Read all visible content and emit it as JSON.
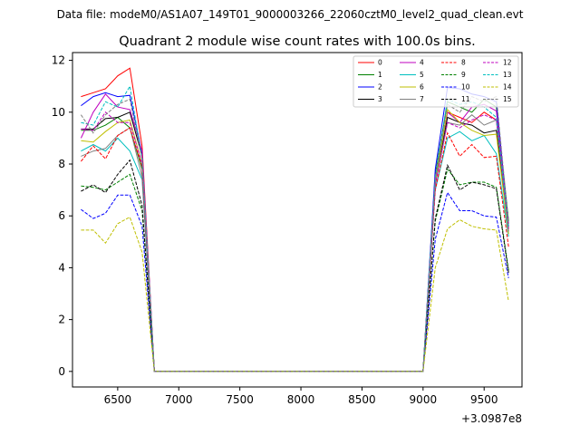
{
  "chart_data": {
    "type": "line",
    "suptitle": "Data file: modeM0/AS1A07_149T01_9000003266_22060cztM0_level2_quad_clean.evt",
    "title": "Quadrant 2 module wise count rates with 100.0s bins.",
    "xlabel": "",
    "ylabel": "",
    "x_offset_label": "+3.0987e8",
    "xlim": [
      6130,
      9810
    ],
    "ylim": [
      -0.6,
      12.3
    ],
    "xticks": [
      6500,
      7000,
      7500,
      8000,
      8500,
      9000,
      9500
    ],
    "yticks": [
      0,
      2,
      4,
      6,
      8,
      10,
      12
    ],
    "grid": false,
    "legend_position": "top-right",
    "legend_columns": 4,
    "x": [
      6200,
      6300,
      6400,
      6500,
      6600,
      6700,
      6800,
      6900,
      7000,
      7100,
      7200,
      7300,
      7400,
      7500,
      7600,
      7700,
      7800,
      7900,
      8000,
      8100,
      8200,
      8300,
      8400,
      8500,
      8600,
      8700,
      8800,
      8900,
      9000,
      9100,
      9200,
      9300,
      9400,
      9500,
      9600,
      9700
    ],
    "series": [
      {
        "name": "0",
        "color": "#ff0000",
        "dash": "solid",
        "values": [
          10.6,
          10.75,
          10.9,
          11.4,
          11.7,
          8.7,
          0,
          0,
          0,
          0,
          0,
          0,
          0,
          0,
          0,
          0,
          0,
          0,
          0,
          0,
          0,
          0,
          0,
          0,
          0,
          0,
          0,
          0,
          0,
          7.5,
          10.0,
          9.8,
          9.6,
          10.0,
          9.7,
          5.7
        ]
      },
      {
        "name": "1",
        "color": "#008000",
        "dash": "solid",
        "values": [
          9.3,
          9.3,
          9.5,
          9.8,
          9.4,
          7.8,
          0,
          0,
          0,
          0,
          0,
          0,
          0,
          0,
          0,
          0,
          0,
          0,
          0,
          0,
          0,
          0,
          0,
          0,
          0,
          0,
          0,
          0,
          0,
          7.6,
          10.4,
          10.2,
          10.0,
          10.5,
          10.2,
          5.8
        ]
      },
      {
        "name": "2",
        "color": "#0000ff",
        "dash": "solid",
        "values": [
          10.25,
          10.6,
          10.75,
          10.6,
          10.65,
          8.4,
          0,
          0,
          0,
          0,
          0,
          0,
          0,
          0,
          0,
          0,
          0,
          0,
          0,
          0,
          0,
          0,
          0,
          0,
          0,
          0,
          0,
          0,
          0,
          7.8,
          10.95,
          10.9,
          10.7,
          10.6,
          10.4,
          5.6
        ]
      },
      {
        "name": "3",
        "color": "#000000",
        "dash": "solid",
        "values": [
          9.35,
          9.35,
          9.75,
          9.8,
          10.0,
          8.3,
          0,
          0,
          0,
          0,
          0,
          0,
          0,
          0,
          0,
          0,
          0,
          0,
          0,
          0,
          0,
          0,
          0,
          0,
          0,
          0,
          0,
          0,
          0,
          7.2,
          9.8,
          9.6,
          9.5,
          9.2,
          9.3,
          5.5
        ]
      },
      {
        "name": "4",
        "color": "#bf00bf",
        "dash": "solid",
        "values": [
          9.0,
          10.0,
          10.7,
          10.2,
          10.1,
          8.5,
          0,
          0,
          0,
          0,
          0,
          0,
          0,
          0,
          0,
          0,
          0,
          0,
          0,
          0,
          0,
          0,
          0,
          0,
          0,
          0,
          0,
          0,
          0,
          7.5,
          10.0,
          9.6,
          10.2,
          10.3,
          10.05,
          5.6
        ]
      },
      {
        "name": "5",
        "color": "#00bfbf",
        "dash": "solid",
        "values": [
          8.5,
          8.75,
          8.5,
          9.0,
          8.5,
          7.4,
          0,
          0,
          0,
          0,
          0,
          0,
          0,
          0,
          0,
          0,
          0,
          0,
          0,
          0,
          0,
          0,
          0,
          0,
          0,
          0,
          0,
          0,
          0,
          7.0,
          9.0,
          9.25,
          8.9,
          9.1,
          8.4,
          5.2
        ]
      },
      {
        "name": "6",
        "color": "#bfbf00",
        "dash": "solid",
        "values": [
          8.9,
          8.85,
          9.25,
          9.6,
          9.7,
          8.0,
          0,
          0,
          0,
          0,
          0,
          0,
          0,
          0,
          0,
          0,
          0,
          0,
          0,
          0,
          0,
          0,
          0,
          0,
          0,
          0,
          0,
          0,
          0,
          7.3,
          10.1,
          9.6,
          9.3,
          9.1,
          9.15,
          5.3
        ]
      },
      {
        "name": "7",
        "color": "#808080",
        "dash": "solid",
        "values": [
          8.3,
          8.5,
          8.6,
          9.1,
          9.4,
          7.5,
          0,
          0,
          0,
          0,
          0,
          0,
          0,
          0,
          0,
          0,
          0,
          0,
          0,
          0,
          0,
          0,
          0,
          0,
          0,
          0,
          0,
          0,
          0,
          7.2,
          9.6,
          9.5,
          9.9,
          9.5,
          9.7,
          5.4
        ]
      },
      {
        "name": "8",
        "color": "#ff0000",
        "dash": "dashed",
        "values": [
          8.1,
          8.7,
          8.2,
          9.1,
          9.4,
          7.9,
          0,
          0,
          0,
          0,
          0,
          0,
          0,
          0,
          0,
          0,
          0,
          0,
          0,
          0,
          0,
          0,
          0,
          0,
          0,
          0,
          0,
          0,
          0,
          7.0,
          9.2,
          8.3,
          8.75,
          8.25,
          8.3,
          4.8
        ]
      },
      {
        "name": "9",
        "color": "#008000",
        "dash": "dashed",
        "values": [
          7.15,
          7.1,
          7.0,
          7.3,
          7.6,
          6.2,
          0,
          0,
          0,
          0,
          0,
          0,
          0,
          0,
          0,
          0,
          0,
          0,
          0,
          0,
          0,
          0,
          0,
          0,
          0,
          0,
          0,
          0,
          0,
          5.8,
          7.8,
          7.2,
          7.3,
          7.3,
          7.1,
          3.9
        ]
      },
      {
        "name": "10",
        "color": "#0000ff",
        "dash": "dashed",
        "values": [
          6.25,
          5.9,
          6.1,
          6.8,
          6.8,
          5.6,
          0,
          0,
          0,
          0,
          0,
          0,
          0,
          0,
          0,
          0,
          0,
          0,
          0,
          0,
          0,
          0,
          0,
          0,
          0,
          0,
          0,
          0,
          0,
          5.1,
          6.9,
          6.2,
          6.2,
          6.0,
          5.95,
          3.6
        ]
      },
      {
        "name": "11",
        "color": "#000000",
        "dash": "dashed",
        "values": [
          6.95,
          7.2,
          6.9,
          7.6,
          8.15,
          6.4,
          0,
          0,
          0,
          0,
          0,
          0,
          0,
          0,
          0,
          0,
          0,
          0,
          0,
          0,
          0,
          0,
          0,
          0,
          0,
          0,
          0,
          0,
          0,
          5.9,
          7.95,
          7.0,
          7.3,
          7.2,
          7.05,
          3.8
        ]
      },
      {
        "name": "12",
        "color": "#bf00bf",
        "dash": "dashed",
        "values": [
          9.35,
          9.3,
          10.0,
          9.6,
          9.6,
          8.0,
          0,
          0,
          0,
          0,
          0,
          0,
          0,
          0,
          0,
          0,
          0,
          0,
          0,
          0,
          0,
          0,
          0,
          0,
          0,
          0,
          0,
          0,
          0,
          7.2,
          9.6,
          9.4,
          9.7,
          9.9,
          9.7,
          5.5
        ]
      },
      {
        "name": "13",
        "color": "#00bfbf",
        "dash": "dashed",
        "values": [
          9.6,
          9.5,
          10.4,
          10.2,
          11.0,
          8.2,
          0,
          0,
          0,
          0,
          0,
          0,
          0,
          0,
          0,
          0,
          0,
          0,
          0,
          0,
          0,
          0,
          0,
          0,
          0,
          0,
          0,
          0,
          0,
          7.5,
          10.5,
          10.3,
          10.4,
          10.2,
          9.8,
          5.6
        ]
      },
      {
        "name": "14",
        "color": "#bfbf00",
        "dash": "dashed",
        "values": [
          5.45,
          5.45,
          4.95,
          5.7,
          5.95,
          4.6,
          0,
          0,
          0,
          0,
          0,
          0,
          0,
          0,
          0,
          0,
          0,
          0,
          0,
          0,
          0,
          0,
          0,
          0,
          0,
          0,
          0,
          0,
          0,
          4.0,
          5.5,
          5.85,
          5.6,
          5.5,
          5.45,
          2.7
        ]
      },
      {
        "name": "15",
        "color": "#808080",
        "dash": "dashed",
        "values": [
          9.9,
          9.2,
          9.9,
          10.3,
          10.5,
          8.2,
          0,
          0,
          0,
          0,
          0,
          0,
          0,
          0,
          0,
          0,
          0,
          0,
          0,
          0,
          0,
          0,
          0,
          0,
          0,
          0,
          0,
          0,
          0,
          7.4,
          10.3,
          10.0,
          10.6,
          10.4,
          10.6,
          5.7
        ]
      }
    ]
  }
}
